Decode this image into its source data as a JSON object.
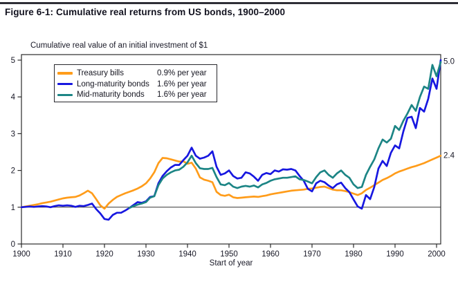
{
  "figure": {
    "title": "Figure 6-1: Cumulative real returns from US bonds, 1900–2000"
  },
  "chart_data": {
    "type": "line",
    "subtitle": "Cumulative real value of an initial investment of $1",
    "xlabel": "Start of year",
    "xlim": [
      1900,
      2001
    ],
    "ylim": [
      0,
      5
    ],
    "x_ticks": [
      1900,
      1910,
      1920,
      1930,
      1940,
      1950,
      1960,
      1970,
      1980,
      1990,
      2000
    ],
    "y_ticks": [
      0,
      1,
      2,
      3,
      4,
      5
    ],
    "reference_line_y": 1,
    "grid": false,
    "legend_position": "top-left",
    "end_labels": [
      {
        "text": "5.0",
        "value": 4.97
      },
      {
        "text": "2.4",
        "value": 2.42
      }
    ],
    "series": [
      {
        "name": "Treasury bills",
        "rate_label": "0.9% per year",
        "color": "#FF9C1A",
        "start_year": 1900,
        "values": [
          1.0,
          1.02,
          1.04,
          1.06,
          1.08,
          1.11,
          1.13,
          1.15,
          1.18,
          1.21,
          1.24,
          1.26,
          1.27,
          1.28,
          1.32,
          1.38,
          1.45,
          1.38,
          1.22,
          1.05,
          0.96,
          1.1,
          1.2,
          1.28,
          1.33,
          1.38,
          1.42,
          1.46,
          1.51,
          1.57,
          1.65,
          1.78,
          1.95,
          2.2,
          2.34,
          2.33,
          2.3,
          2.27,
          2.24,
          2.25,
          2.18,
          2.21,
          2.05,
          1.81,
          1.75,
          1.72,
          1.68,
          1.42,
          1.33,
          1.31,
          1.34,
          1.27,
          1.25,
          1.26,
          1.27,
          1.28,
          1.29,
          1.28,
          1.3,
          1.32,
          1.35,
          1.37,
          1.39,
          1.41,
          1.43,
          1.45,
          1.46,
          1.47,
          1.48,
          1.5,
          1.51,
          1.53,
          1.55,
          1.56,
          1.52,
          1.48,
          1.46,
          1.46,
          1.44,
          1.41,
          1.37,
          1.33,
          1.38,
          1.47,
          1.53,
          1.6,
          1.67,
          1.74,
          1.79,
          1.85,
          1.92,
          1.97,
          2.01,
          2.05,
          2.09,
          2.12,
          2.16,
          2.2,
          2.25,
          2.3,
          2.35,
          2.4
        ]
      },
      {
        "name": "Long-maturity bonds",
        "rate_label": "1.6% per year",
        "color": "#1717E0",
        "start_year": 1900,
        "values": [
          1.0,
          1.01,
          1.02,
          1.01,
          1.02,
          1.03,
          1.02,
          1.0,
          1.03,
          1.05,
          1.04,
          1.05,
          1.04,
          1.01,
          1.04,
          1.03,
          1.06,
          1.1,
          0.95,
          0.83,
          0.68,
          0.66,
          0.79,
          0.85,
          0.85,
          0.91,
          0.98,
          1.06,
          1.14,
          1.12,
          1.16,
          1.28,
          1.3,
          1.65,
          1.85,
          1.98,
          2.08,
          2.15,
          2.15,
          2.28,
          2.4,
          2.62,
          2.4,
          2.32,
          2.35,
          2.4,
          2.52,
          2.1,
          1.88,
          1.92,
          2.0,
          1.85,
          1.78,
          1.8,
          1.95,
          1.92,
          1.83,
          1.72,
          1.88,
          1.93,
          1.9,
          2.0,
          1.97,
          2.03,
          2.02,
          2.04,
          2.0,
          1.85,
          1.72,
          1.5,
          1.43,
          1.65,
          1.72,
          1.68,
          1.59,
          1.52,
          1.62,
          1.67,
          1.52,
          1.41,
          1.21,
          1.02,
          0.96,
          1.33,
          1.22,
          1.55,
          2.05,
          2.26,
          2.12,
          2.48,
          2.68,
          2.6,
          3.06,
          3.43,
          3.46,
          3.15,
          3.7,
          3.6,
          3.95,
          4.5,
          4.22,
          5.0
        ]
      },
      {
        "name": "Mid-maturity bonds",
        "rate_label": "1.6% per year",
        "color": "#1C8585",
        "start_year": 1926,
        "values": [
          0.98,
          1.03,
          1.07,
          1.1,
          1.14,
          1.26,
          1.3,
          1.6,
          1.78,
          1.88,
          1.95,
          2.0,
          2.02,
          2.1,
          2.22,
          2.4,
          2.2,
          2.06,
          2.04,
          2.04,
          2.07,
          1.82,
          1.62,
          1.6,
          1.66,
          1.56,
          1.52,
          1.56,
          1.58,
          1.56,
          1.59,
          1.54,
          1.62,
          1.66,
          1.72,
          1.76,
          1.78,
          1.8,
          1.8,
          1.82,
          1.84,
          1.76,
          1.74,
          1.7,
          1.65,
          1.82,
          1.95,
          2.0,
          1.88,
          1.8,
          1.92,
          2.0,
          1.88,
          1.8,
          1.62,
          1.52,
          1.55,
          1.88,
          2.1,
          2.3,
          2.6,
          2.84,
          2.76,
          2.86,
          3.21,
          3.1,
          3.35,
          3.55,
          3.78,
          3.62,
          4.0,
          4.28,
          4.22,
          4.87,
          4.56,
          4.95
        ]
      }
    ]
  }
}
